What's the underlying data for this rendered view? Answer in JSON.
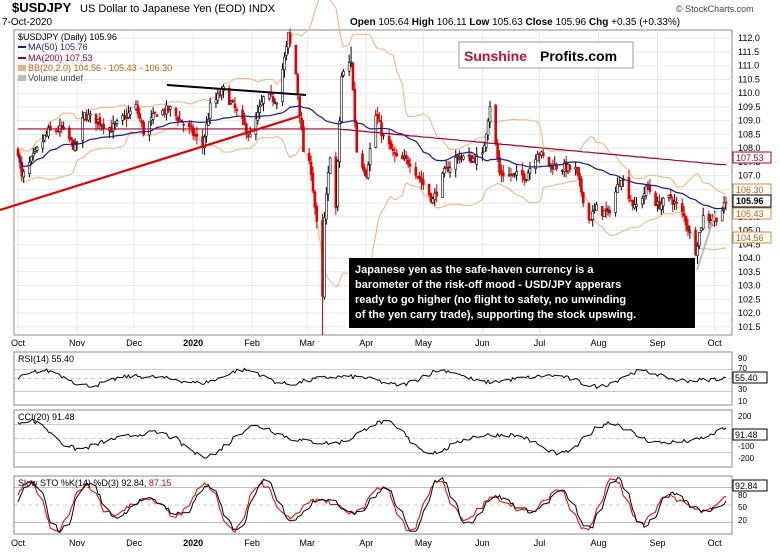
{
  "header": {
    "symbol": "$USDJPY",
    "description": "US Dollar to Japanese Yen (EOD)",
    "exchange": "INDX",
    "date": "7-Oct-2020",
    "open_label": "Open",
    "open": "105.64",
    "high_label": "High",
    "high": "106.11",
    "low_label": "Low",
    "low": "105.63",
    "close_label": "Close",
    "close": "105.96",
    "chg_label": "Chg",
    "chg": "+0.35 (+0.33%)",
    "copyright": "© StockCharts.com"
  },
  "legend": {
    "main": "$USDJPY (Daily) 105.96",
    "ma50": "MA(50) 105.76",
    "ma200": "MA(200) 107.53",
    "bb": "BB(20,2.0) 104.56 - 105.43 - 106.30",
    "volume": "Volume undef"
  },
  "logo": {
    "sunshine": "Sunshine",
    "profits": "Profits.com"
  },
  "annotation": "Japanese yen as the safe-haven currency is a barometer of the risk-off mood - USD/JPY apperars ready to go higher (no flight to safety, no unwinding of the yen carry trade), supporting the stock upswing.",
  "annotation_lines": [
    "Japanese yen as the safe-haven currency is a",
    "barometer of the risk-off mood - USD/JPY apperars",
    "ready to go higher (no flight to safety, no unwinding",
    "of the yen carry trade), supporting the stock upswing."
  ],
  "price_tags": {
    "ma200": "107.53",
    "bb_upper": "106.30",
    "close": "105.96",
    "bb_mid": "105.43",
    "bb_lower": "104.56"
  },
  "panels": {
    "rsi": {
      "label": "RSI(14) 55.40",
      "tag": "55.40",
      "ticks": [
        "90",
        "70",
        "50",
        "30",
        "10"
      ]
    },
    "cci": {
      "label": "CCI(20) 91.48",
      "tag": "91.48",
      "ticks": [
        "200",
        "100",
        "0",
        "-100",
        "-200"
      ]
    },
    "sto": {
      "label": "Slow STO %K(14) %D(3) 92.84,",
      "label_d": "87.15",
      "tag": "92.84",
      "ticks": [
        "80",
        "50",
        "20"
      ]
    }
  },
  "x_months": [
    "Oct",
    "Nov",
    "Dec",
    "2020",
    "Feb",
    "Mar",
    "Apr",
    "May",
    "Jun",
    "Jul",
    "Aug",
    "Sep",
    "Oct"
  ],
  "colors": {
    "up": "#000000",
    "down": "#e00000",
    "ma50": "#1a1a8c",
    "ma200": "#a00030",
    "bb": "#f0b080",
    "trend_red": "#e00000",
    "trend_black": "#000000",
    "cci_pos": "#5a8a5a",
    "cci_neg": "#9a5050",
    "sto_k": "#000000",
    "sto_d": "#e00000"
  },
  "chart_data": {
    "type": "candlestick",
    "title": "$USDJPY US Dollar to Japanese Yen (EOD)",
    "y_axis_ticks": [
      101.5,
      102.0,
      102.5,
      103.0,
      103.5,
      104.0,
      104.5,
      105.0,
      105.5,
      106.0,
      106.5,
      107.0,
      107.5,
      108.0,
      108.5,
      109.0,
      109.5,
      110.0,
      110.5,
      111.0,
      111.5,
      112.0
    ],
    "ylim": [
      101.2,
      112.3
    ],
    "x_range": [
      "2019-10-01",
      "2020-10-07"
    ],
    "months": [
      {
        "label": "Oct",
        "date": "2019-10-01"
      },
      {
        "label": "Nov",
        "date": "2019-11-01"
      },
      {
        "label": "Dec",
        "date": "2019-12-01"
      },
      {
        "label": "2020",
        "date": "2020-01-01"
      },
      {
        "label": "Feb",
        "date": "2020-02-01"
      },
      {
        "label": "Mar",
        "date": "2020-03-01"
      },
      {
        "label": "Apr",
        "date": "2020-04-01"
      },
      {
        "label": "May",
        "date": "2020-05-01"
      },
      {
        "label": "Jun",
        "date": "2020-06-01"
      },
      {
        "label": "Jul",
        "date": "2020-07-01"
      },
      {
        "label": "Aug",
        "date": "2020-08-01"
      },
      {
        "label": "Sep",
        "date": "2020-09-01"
      },
      {
        "label": "Oct",
        "date": "2020-10-01"
      }
    ],
    "close_path": [
      [
        "2019-10-01",
        107.9
      ],
      [
        "2019-10-03",
        106.9
      ],
      [
        "2019-10-10",
        107.8
      ],
      [
        "2019-10-17",
        108.6
      ],
      [
        "2019-10-24",
        108.7
      ],
      [
        "2019-10-31",
        108.0
      ],
      [
        "2019-11-05",
        109.2
      ],
      [
        "2019-11-12",
        109.0
      ],
      [
        "2019-11-19",
        108.7
      ],
      [
        "2019-11-26",
        109.1
      ],
      [
        "2019-12-02",
        109.5
      ],
      [
        "2019-12-06",
        108.6
      ],
      [
        "2019-12-13",
        109.3
      ],
      [
        "2019-12-20",
        109.4
      ],
      [
        "2019-12-31",
        108.6
      ],
      [
        "2020-01-06",
        108.1
      ],
      [
        "2020-01-10",
        109.5
      ],
      [
        "2020-01-17",
        110.1
      ],
      [
        "2020-01-24",
        109.3
      ],
      [
        "2020-01-31",
        108.4
      ],
      [
        "2020-02-07",
        109.8
      ],
      [
        "2020-02-14",
        109.8
      ],
      [
        "2020-02-19",
        111.6
      ],
      [
        "2020-02-20",
        112.1
      ],
      [
        "2020-02-24",
        110.7
      ],
      [
        "2020-02-28",
        107.9
      ],
      [
        "2020-03-03",
        107.2
      ],
      [
        "2020-03-06",
        105.2
      ],
      [
        "2020-03-09",
        102.5
      ],
      [
        "2020-03-10",
        105.4
      ],
      [
        "2020-03-13",
        107.8
      ],
      [
        "2020-03-16",
        105.8
      ],
      [
        "2020-03-19",
        110.6
      ],
      [
        "2020-03-24",
        111.2
      ],
      [
        "2020-03-27",
        107.9
      ],
      [
        "2020-04-01",
        107.1
      ],
      [
        "2020-04-06",
        109.2
      ],
      [
        "2020-04-10",
        108.4
      ],
      [
        "2020-04-17",
        107.6
      ],
      [
        "2020-04-24",
        107.5
      ],
      [
        "2020-04-30",
        106.8
      ],
      [
        "2020-05-06",
        106.1
      ],
      [
        "2020-05-12",
        107.1
      ],
      [
        "2020-05-19",
        107.7
      ],
      [
        "2020-05-26",
        107.6
      ],
      [
        "2020-06-01",
        107.7
      ],
      [
        "2020-06-05",
        109.6
      ],
      [
        "2020-06-10",
        107.1
      ],
      [
        "2020-06-17",
        107.0
      ],
      [
        "2020-06-24",
        107.0
      ],
      [
        "2020-06-30",
        107.9
      ],
      [
        "2020-07-06",
        107.4
      ],
      [
        "2020-07-13",
        107.3
      ],
      [
        "2020-07-20",
        107.2
      ],
      [
        "2020-07-27",
        105.4
      ],
      [
        "2020-07-31",
        105.8
      ],
      [
        "2020-08-06",
        105.6
      ],
      [
        "2020-08-13",
        107.0
      ],
      [
        "2020-08-20",
        105.8
      ],
      [
        "2020-08-27",
        106.6
      ],
      [
        "2020-09-01",
        105.9
      ],
      [
        "2020-09-08",
        106.2
      ],
      [
        "2020-09-15",
        105.5
      ],
      [
        "2020-09-21",
        104.3
      ],
      [
        "2020-09-25",
        105.5
      ],
      [
        "2020-10-01",
        105.4
      ],
      [
        "2020-10-07",
        105.96
      ]
    ],
    "indicators": {
      "RSI(14)": 55.4,
      "CCI(20)": 91.48,
      "Slow STO %K(14)": 92.84,
      "Slow STO %D(3)": 87.15,
      "MA(50)": 105.76,
      "MA(200)": 107.53,
      "BB upper": 106.3,
      "BB mid": 105.43,
      "BB lower": 104.56
    }
  }
}
